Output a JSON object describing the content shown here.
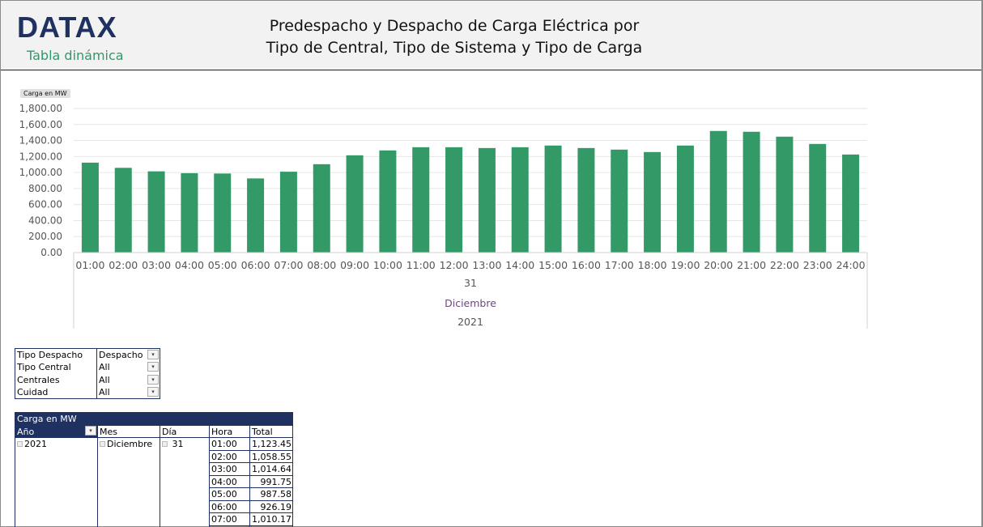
{
  "header": {
    "logo": "DATAX",
    "subtitle": "Tabla dinámica",
    "title_line1": "Predespacho y Despacho de Carga Eléctrica por",
    "title_line2": "Tipo de Central, Tipo de Sistema y Tipo de Carga"
  },
  "chart_data": {
    "type": "bar",
    "measure_label": "Carga en MW",
    "categories": [
      "01:00",
      "02:00",
      "03:00",
      "04:00",
      "05:00",
      "06:00",
      "07:00",
      "08:00",
      "09:00",
      "10:00",
      "11:00",
      "12:00",
      "13:00",
      "14:00",
      "15:00",
      "16:00",
      "17:00",
      "18:00",
      "19:00",
      "20:00",
      "21:00",
      "22:00",
      "23:00",
      "24:00"
    ],
    "values": [
      1123.45,
      1058.55,
      1014.64,
      991.75,
      987.58,
      926.19,
      1010.17,
      1104,
      1215,
      1276,
      1316,
      1316,
      1306,
      1316,
      1337,
      1306,
      1286,
      1256,
      1337,
      1519,
      1509,
      1448,
      1357,
      1225
    ],
    "group_labels": [
      "31",
      "Diciembre",
      "2021"
    ],
    "yticks": [
      "0.00",
      "200.00",
      "400.00",
      "600.00",
      "800.00",
      "1,000.00",
      "1,200.00",
      "1,400.00",
      "1,600.00",
      "1,800.00"
    ],
    "ylim": [
      0,
      1800
    ],
    "color": "#339966",
    "grid": true
  },
  "filters": [
    {
      "label": "Tipo Despacho",
      "value": "Despacho",
      "filtered": true
    },
    {
      "label": "Tipo Central",
      "value": "All"
    },
    {
      "label": "Centrales",
      "value": "All"
    },
    {
      "label": "Cuidad",
      "value": "All"
    }
  ],
  "pivot": {
    "title": "Carga en MW",
    "headers": [
      "Año",
      "Mes",
      "Día",
      "Hora",
      "Total"
    ],
    "year": "2021",
    "month": "Diciembre",
    "day": "31",
    "rows": [
      {
        "hora": "01:00",
        "total": "1,123.45"
      },
      {
        "hora": "02:00",
        "total": "1,058.55"
      },
      {
        "hora": "03:00",
        "total": "1,014.64"
      },
      {
        "hora": "04:00",
        "total": "991.75"
      },
      {
        "hora": "05:00",
        "total": "987.58"
      },
      {
        "hora": "06:00",
        "total": "926.19"
      },
      {
        "hora": "07:00",
        "total": "1,010.17"
      }
    ]
  }
}
